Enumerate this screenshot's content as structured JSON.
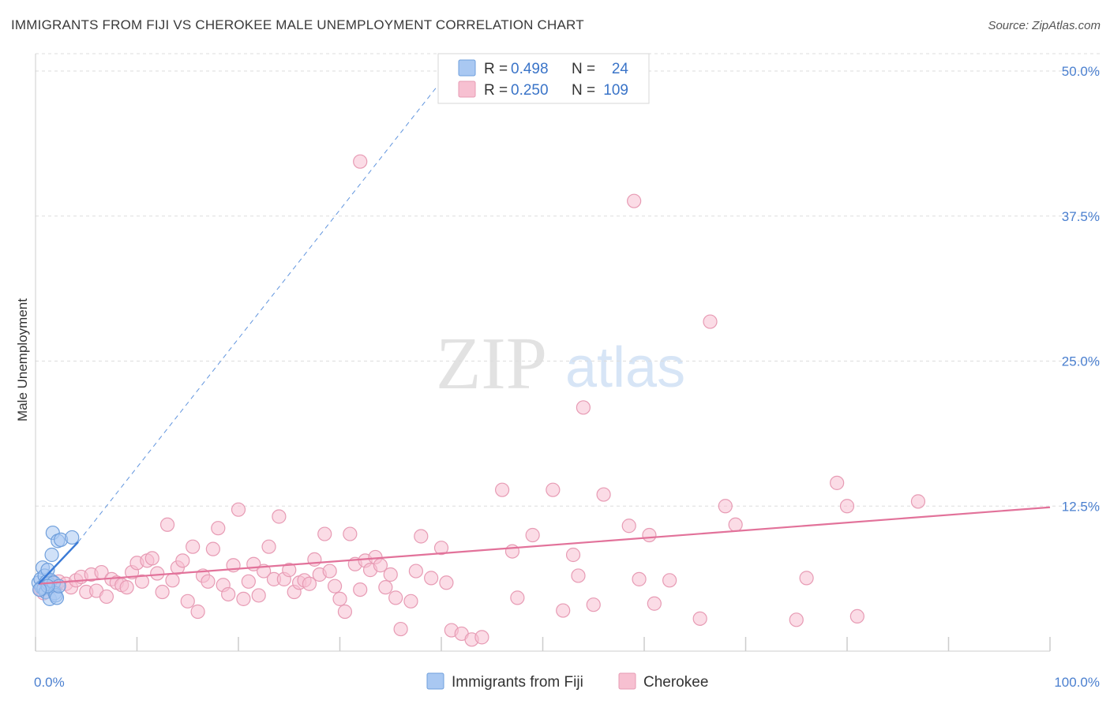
{
  "title": "IMMIGRANTS FROM FIJI VS CHEROKEE MALE UNEMPLOYMENT CORRELATION CHART",
  "source": "Source: ZipAtlas.com",
  "watermark": {
    "zip": "ZIP",
    "atlas": "atlas"
  },
  "colors": {
    "fiji_fill": "#a9c8f2",
    "fiji_stroke": "#6f9fdc",
    "fiji_line": "#3a7ad6",
    "cherokee_fill": "#f7c0d1",
    "cherokee_stroke": "#e79bb4",
    "cherokee_line": "#e2729a",
    "grid": "#dddddd",
    "axis_text": "#4a7fcf"
  },
  "legend": {
    "r_label": "R =",
    "n_label": "N =",
    "rows": [
      {
        "series": "fiji",
        "r": "0.498",
        "n": "24"
      },
      {
        "series": "cherokee",
        "r": "0.250",
        "n": "109"
      }
    ]
  },
  "bottom_legend": [
    "Immigrants from Fiji",
    "Cherokee"
  ],
  "chart_data": {
    "type": "scatter",
    "title": "IMMIGRANTS FROM FIJI VS CHEROKEE MALE UNEMPLOYMENT CORRELATION CHART",
    "xlabel": "",
    "ylabel": "Male Unemployment",
    "xlim": [
      0,
      100
    ],
    "ylim": [
      0,
      51.5
    ],
    "y_ticks": [
      12.5,
      25.0,
      37.5,
      50.0
    ],
    "y_tick_labels": [
      "12.5%",
      "25.0%",
      "37.5%",
      "50.0%"
    ],
    "x_tick_labels": [
      "0.0%",
      "100.0%"
    ],
    "grid": true,
    "series": [
      {
        "name": "Immigrants from Fiji",
        "r": 0.498,
        "n": 24,
        "trend": {
          "solid": [
            [
              0.3,
              5.8
            ],
            [
              4.2,
              9.4
            ]
          ],
          "dashed": [
            [
              4.2,
              9.4
            ],
            [
              40.6,
              49.8
            ]
          ]
        },
        "points": [
          [
            0.3,
            5.9
          ],
          [
            0.5,
            6.2
          ],
          [
            0.6,
            5.5
          ],
          [
            0.7,
            7.2
          ],
          [
            0.8,
            5.4
          ],
          [
            0.9,
            6.5
          ],
          [
            1.0,
            5.1
          ],
          [
            1.1,
            6.0
          ],
          [
            1.2,
            7.0
          ],
          [
            1.3,
            5.8
          ],
          [
            1.4,
            4.5
          ],
          [
            1.5,
            6.1
          ],
          [
            1.6,
            8.3
          ],
          [
            1.7,
            10.2
          ],
          [
            1.8,
            5.9
          ],
          [
            1.9,
            5.0
          ],
          [
            2.0,
            4.8
          ],
          [
            2.1,
            4.6
          ],
          [
            2.2,
            9.5
          ],
          [
            2.3,
            5.6
          ],
          [
            2.5,
            9.6
          ],
          [
            3.6,
            9.8
          ],
          [
            1.2,
            5.6
          ],
          [
            0.4,
            5.3
          ]
        ]
      },
      {
        "name": "Cherokee",
        "r": 0.25,
        "n": 109,
        "trend": {
          "solid": [
            [
              0.3,
              5.8
            ],
            [
              100,
              12.4
            ]
          ]
        },
        "points": [
          [
            0.5,
            5.3
          ],
          [
            0.8,
            5.0
          ],
          [
            1.0,
            5.8
          ],
          [
            1.5,
            6.0
          ],
          [
            2.0,
            5.6
          ],
          [
            2.3,
            6.0
          ],
          [
            3.0,
            5.8
          ],
          [
            3.5,
            5.5
          ],
          [
            4.0,
            6.1
          ],
          [
            4.5,
            6.4
          ],
          [
            5.0,
            5.1
          ],
          [
            5.5,
            6.6
          ],
          [
            6.0,
            5.2
          ],
          [
            6.5,
            6.8
          ],
          [
            7.0,
            4.7
          ],
          [
            7.5,
            6.2
          ],
          [
            8.0,
            5.9
          ],
          [
            8.5,
            5.7
          ],
          [
            9.0,
            5.5
          ],
          [
            9.5,
            6.8
          ],
          [
            10.0,
            7.6
          ],
          [
            10.5,
            6.0
          ],
          [
            11.0,
            7.8
          ],
          [
            11.5,
            8.0
          ],
          [
            12.0,
            6.7
          ],
          [
            12.5,
            5.1
          ],
          [
            13.0,
            10.9
          ],
          [
            13.5,
            6.1
          ],
          [
            14.0,
            7.2
          ],
          [
            14.5,
            7.8
          ],
          [
            15.0,
            4.3
          ],
          [
            15.5,
            9.0
          ],
          [
            16.0,
            3.4
          ],
          [
            16.5,
            6.5
          ],
          [
            17.0,
            6.0
          ],
          [
            17.5,
            8.8
          ],
          [
            18.0,
            10.6
          ],
          [
            18.5,
            5.7
          ],
          [
            19.0,
            4.9
          ],
          [
            19.5,
            7.4
          ],
          [
            20.0,
            12.2
          ],
          [
            20.5,
            4.5
          ],
          [
            21.0,
            6.0
          ],
          [
            21.5,
            7.5
          ],
          [
            22.0,
            4.8
          ],
          [
            22.5,
            6.9
          ],
          [
            23.0,
            9.0
          ],
          [
            23.5,
            6.2
          ],
          [
            24.0,
            11.6
          ],
          [
            24.5,
            6.2
          ],
          [
            25.0,
            7.0
          ],
          [
            25.5,
            5.1
          ],
          [
            26.0,
            5.9
          ],
          [
            26.5,
            6.1
          ],
          [
            27.0,
            5.8
          ],
          [
            27.5,
            7.9
          ],
          [
            28.0,
            6.6
          ],
          [
            28.5,
            10.1
          ],
          [
            29.0,
            6.9
          ],
          [
            29.5,
            5.6
          ],
          [
            30.0,
            4.5
          ],
          [
            30.5,
            3.4
          ],
          [
            31.0,
            10.1
          ],
          [
            31.5,
            7.5
          ],
          [
            32.0,
            5.3
          ],
          [
            32.5,
            7.8
          ],
          [
            33.0,
            7.0
          ],
          [
            33.5,
            8.1
          ],
          [
            34.0,
            7.4
          ],
          [
            34.5,
            5.5
          ],
          [
            35.0,
            6.6
          ],
          [
            35.5,
            4.6
          ],
          [
            36.0,
            1.9
          ],
          [
            37.0,
            4.3
          ],
          [
            37.5,
            6.9
          ],
          [
            38.0,
            9.9
          ],
          [
            39.0,
            6.3
          ],
          [
            40.0,
            8.9
          ],
          [
            40.5,
            5.9
          ],
          [
            41.0,
            1.8
          ],
          [
            42.0,
            1.5
          ],
          [
            43.0,
            1.0
          ],
          [
            44.0,
            1.2
          ],
          [
            46.0,
            13.9
          ],
          [
            47.0,
            8.6
          ],
          [
            47.5,
            4.6
          ],
          [
            49.0,
            10.0
          ],
          [
            51.0,
            13.9
          ],
          [
            52.0,
            3.5
          ],
          [
            53.0,
            8.3
          ],
          [
            53.5,
            6.5
          ],
          [
            55.0,
            4.0
          ],
          [
            54.0,
            21.0
          ],
          [
            56.0,
            13.5
          ],
          [
            58.5,
            10.8
          ],
          [
            59.5,
            6.2
          ],
          [
            59.0,
            38.8
          ],
          [
            60.5,
            10.0
          ],
          [
            61.0,
            4.1
          ],
          [
            62.5,
            6.1
          ],
          [
            65.5,
            2.8
          ],
          [
            66.5,
            28.4
          ],
          [
            68.0,
            12.5
          ],
          [
            69.0,
            10.9
          ],
          [
            75.0,
            2.7
          ],
          [
            76.0,
            6.3
          ],
          [
            79.0,
            14.5
          ],
          [
            80.0,
            12.5
          ],
          [
            81.0,
            3.0
          ],
          [
            87.0,
            12.9
          ],
          [
            32.0,
            42.2
          ]
        ]
      }
    ]
  }
}
